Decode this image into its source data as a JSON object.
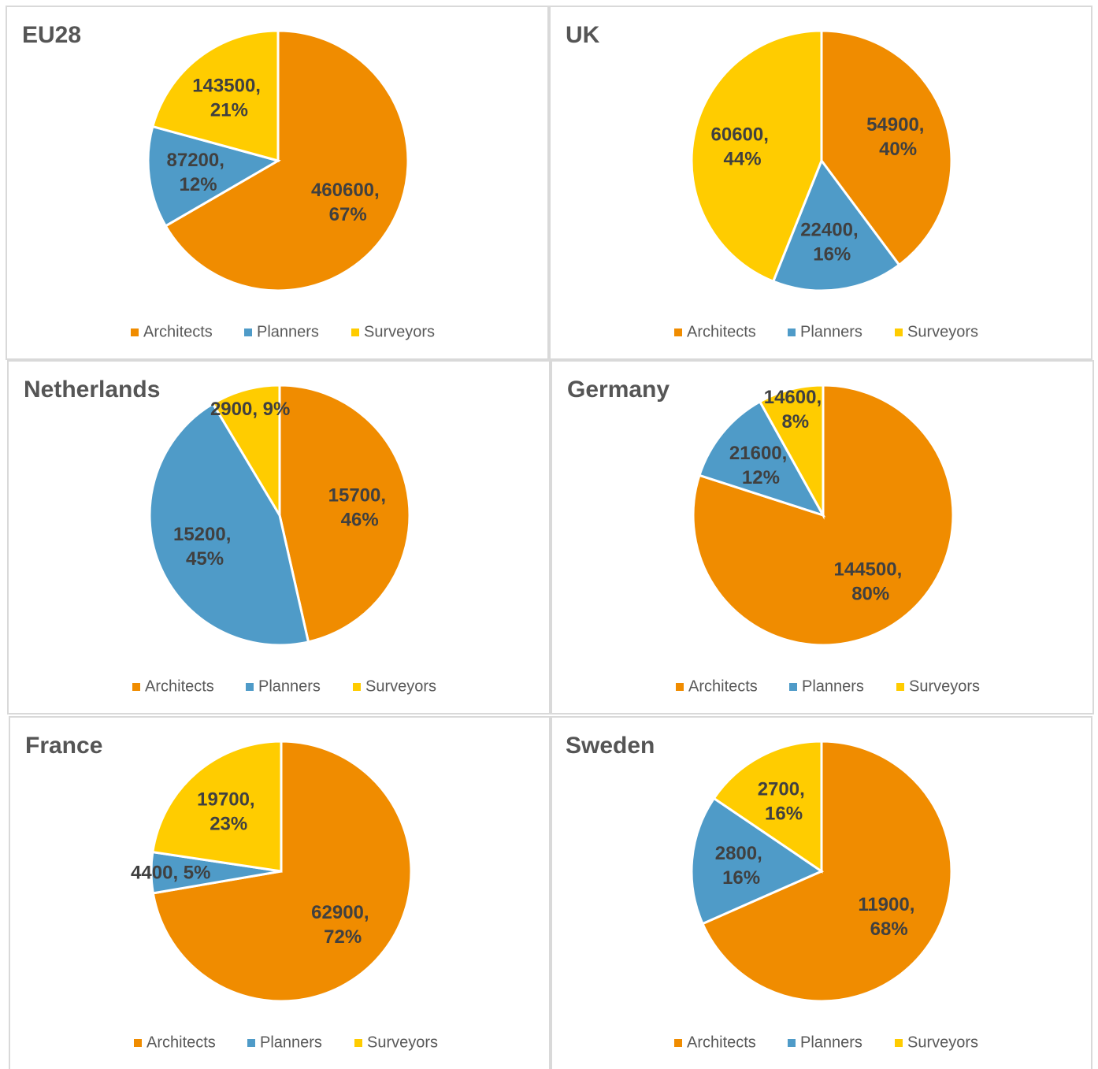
{
  "chart_data": [
    {
      "type": "pie",
      "title": "EU28",
      "categories": [
        "Architects",
        "Planners",
        "Surveyors"
      ],
      "values": [
        460600,
        87200,
        143500
      ],
      "value_labels": [
        "460600, 67%",
        "87200, 12%",
        "143500, 21%"
      ],
      "colors": [
        "#f08c00",
        "#4f9bc8",
        "#ffcc00"
      ]
    },
    {
      "type": "pie",
      "title": "UK",
      "categories": [
        "Architects",
        "Planners",
        "Surveyors"
      ],
      "values": [
        54900,
        22400,
        60600
      ],
      "value_labels": [
        "54900, 40%",
        "22400, 16%",
        "60600, 44%"
      ],
      "colors": [
        "#f08c00",
        "#4f9bc8",
        "#ffcc00"
      ]
    },
    {
      "type": "pie",
      "title": "Netherlands",
      "categories": [
        "Architects",
        "Planners",
        "Surveyors"
      ],
      "values": [
        15700,
        15200,
        2900
      ],
      "value_labels": [
        "15700, 46%",
        "15200, 45%",
        "2900, 9%"
      ],
      "colors": [
        "#f08c00",
        "#4f9bc8",
        "#ffcc00"
      ]
    },
    {
      "type": "pie",
      "title": "Germany",
      "categories": [
        "Architects",
        "Planners",
        "Surveyors"
      ],
      "values": [
        144500,
        21600,
        14600
      ],
      "value_labels": [
        "144500, 80%",
        "21600, 12%",
        "14600, 8%"
      ],
      "colors": [
        "#f08c00",
        "#4f9bc8",
        "#ffcc00"
      ]
    },
    {
      "type": "pie",
      "title": "France",
      "categories": [
        "Architects",
        "Planners",
        "Surveyors"
      ],
      "values": [
        62900,
        4400,
        19700
      ],
      "value_labels": [
        "62900, 72%",
        "4400, 5%",
        "19700, 23%"
      ],
      "colors": [
        "#f08c00",
        "#4f9bc8",
        "#ffcc00"
      ]
    },
    {
      "type": "pie",
      "title": "Sweden",
      "categories": [
        "Architects",
        "Planners",
        "Surveyors"
      ],
      "values": [
        11900,
        2800,
        2700
      ],
      "value_labels": [
        "11900, 68%",
        "2800, 16%",
        "2700, 16%"
      ],
      "colors": [
        "#f08c00",
        "#4f9bc8",
        "#ffcc00"
      ]
    }
  ]
}
